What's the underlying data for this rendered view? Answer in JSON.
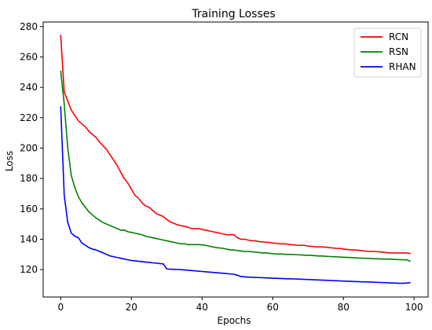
{
  "chart_data": {
    "type": "line",
    "title": "Training Losses",
    "xlabel": "Epochs",
    "ylabel": "Loss",
    "xlim": [
      -4.95,
      103.95
    ],
    "ylim": [
      102,
      283
    ],
    "xticks": [
      0,
      20,
      40,
      60,
      80,
      100
    ],
    "yticks": [
      120,
      140,
      160,
      180,
      200,
      220,
      240,
      260,
      280
    ],
    "grid": false,
    "legend_position": "top-right",
    "x": [
      0,
      1,
      2,
      3,
      4,
      5,
      6,
      7,
      8,
      9,
      10,
      11,
      12,
      13,
      14,
      15,
      16,
      17,
      18,
      19,
      20,
      21,
      22,
      23,
      24,
      25,
      26,
      27,
      28,
      29,
      30,
      31,
      32,
      33,
      34,
      35,
      36,
      37,
      38,
      39,
      40,
      41,
      42,
      43,
      44,
      45,
      46,
      47,
      48,
      49,
      50,
      51,
      52,
      53,
      54,
      55,
      56,
      57,
      58,
      59,
      60,
      61,
      62,
      63,
      64,
      65,
      66,
      67,
      68,
      69,
      70,
      71,
      72,
      73,
      74,
      75,
      76,
      77,
      78,
      79,
      80,
      81,
      82,
      83,
      84,
      85,
      86,
      87,
      88,
      89,
      90,
      91,
      92,
      93,
      94,
      95,
      96,
      97,
      98,
      99
    ],
    "series": [
      {
        "name": "RCN",
        "color": "#ff0000",
        "values": [
          274.5,
          237,
          231,
          225,
          221.5,
          218,
          216,
          214,
          211,
          209,
          207,
          204,
          201.5,
          199,
          195.5,
          192,
          188.5,
          184,
          180,
          177,
          173,
          169,
          167,
          164,
          162,
          161,
          159,
          157,
          156,
          155,
          153,
          151.5,
          150.5,
          149.5,
          149,
          148.5,
          148,
          147,
          147,
          147,
          146.5,
          146,
          145.5,
          145,
          144.5,
          144,
          143.5,
          143,
          143,
          143,
          141,
          140,
          140,
          139.5,
          139,
          139,
          138.5,
          138.3,
          138,
          138,
          137.5,
          137.3,
          137,
          137,
          136.8,
          136.5,
          136.3,
          136,
          136,
          136,
          135.5,
          135.3,
          135,
          135,
          135,
          134.8,
          134.5,
          134.3,
          134,
          134,
          133.5,
          133.3,
          133,
          133,
          132.8,
          132.5,
          132.3,
          132,
          132,
          132,
          131.8,
          131.5,
          131.3,
          131,
          131,
          131,
          131,
          131,
          131,
          130.5
        ]
      },
      {
        "name": "RSN",
        "color": "#008000",
        "values": [
          251,
          229,
          200,
          182,
          174,
          168,
          164,
          161,
          158,
          156,
          154,
          152.5,
          151,
          150,
          149,
          148,
          147,
          146,
          146,
          145,
          144.5,
          144,
          143.5,
          143,
          142,
          141.5,
          141,
          140.5,
          140,
          139.5,
          139,
          138.5,
          138,
          137.5,
          137,
          137,
          136.5,
          136.5,
          136.5,
          136.5,
          136.3,
          136,
          135.5,
          135,
          134.5,
          134.3,
          134,
          133.5,
          133,
          133,
          132.5,
          132.3,
          132,
          132,
          131.8,
          131.5,
          131.3,
          131,
          131,
          130.8,
          130.5,
          130.3,
          130.3,
          130.2,
          130,
          130,
          130,
          129.8,
          129.7,
          129.5,
          129.5,
          129.4,
          129.2,
          129,
          129,
          128.8,
          128.7,
          128.5,
          128.5,
          128.3,
          128.2,
          128,
          128,
          127.8,
          127.7,
          127.6,
          127.5,
          127.4,
          127.3,
          127.2,
          127.1,
          127,
          127,
          126.9,
          126.8,
          126.7,
          126.6,
          126.5,
          126.4,
          125.5
        ]
      },
      {
        "name": "RHAN",
        "color": "#0000ff",
        "values": [
          227.5,
          169,
          151,
          144,
          142,
          141,
          137.5,
          136,
          134.5,
          133.5,
          133,
          132,
          131,
          130,
          129,
          128.5,
          128,
          127.5,
          127,
          126.5,
          126,
          125.8,
          125.5,
          125.3,
          125,
          124.8,
          124.5,
          124.3,
          124,
          123.8,
          120.5,
          120.3,
          120.2,
          120.1,
          120,
          119.8,
          119.6,
          119.4,
          119.2,
          119,
          118.8,
          118.6,
          118.4,
          118.2,
          118,
          117.8,
          117.6,
          117.4,
          117.2,
          117,
          116.3,
          115.5,
          115.3,
          115.1,
          115,
          114.9,
          114.8,
          114.7,
          114.6,
          114.5,
          114.4,
          114.3,
          114.2,
          114.1,
          114,
          114,
          113.9,
          113.8,
          113.7,
          113.6,
          113.5,
          113.4,
          113.3,
          113.2,
          113.1,
          113,
          112.9,
          112.8,
          112.7,
          112.6,
          112.5,
          112.4,
          112.3,
          112.2,
          112.1,
          112,
          112,
          111.9,
          111.8,
          111.7,
          111.6,
          111.5,
          111.4,
          111.3,
          111.2,
          111.1,
          111,
          111,
          111.2,
          111.5
        ]
      }
    ]
  }
}
